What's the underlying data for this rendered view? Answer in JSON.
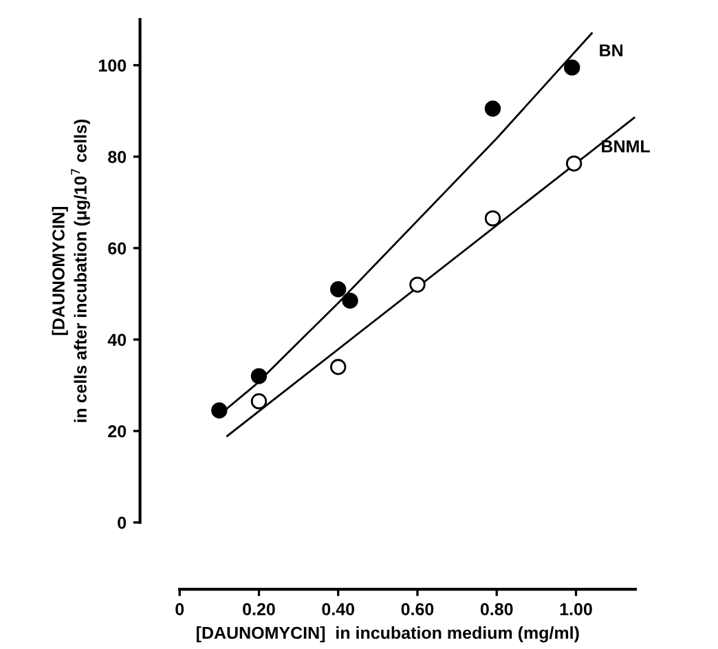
{
  "chart_data": {
    "type": "scatter",
    "xlabel": "[DAUNOMYCIN]  in incubation medium (mg/ml)",
    "ylabel": "[DAUNOMYCIN]\nin cells after incubation (μg/10$^{7}$ cells)",
    "xlim": [
      -0.1,
      1.15
    ],
    "ylim": [
      0,
      110
    ],
    "xticks": [
      0,
      {
        "value": 0.2,
        "label": "0.20"
      },
      {
        "value": 0.4,
        "label": "0.40"
      },
      {
        "value": 0.6,
        "label": "0.60"
      },
      {
        "value": 0.8,
        "label": "0.80"
      },
      {
        "value": 1.0,
        "label": "1.00"
      }
    ],
    "yticks": [
      0,
      20,
      40,
      60,
      80,
      100
    ],
    "grid": false,
    "legend": false,
    "series": [
      {
        "name": "BN",
        "color": "#000000",
        "marker": "circle",
        "x": [
          0.1,
          0.2,
          0.4,
          0.43,
          0.79,
          0.99
        ],
        "values": [
          24.5,
          32,
          51,
          48.5,
          90.5,
          99.5
        ]
      },
      {
        "name": "BNML",
        "color": "#ffffff",
        "marker": "circle",
        "x": [
          0.2,
          0.4,
          0.6,
          0.79,
          0.995
        ],
        "values": [
          26.5,
          34,
          52,
          66.5,
          78.5
        ]
      },
      {
        "type": "line",
        "color": "#000000",
        "x": [
          0.1,
          0.19,
          0.4,
          0.8,
          1.04
        ],
        "values": [
          23.5,
          30,
          48,
          84,
          107
        ]
      },
      {
        "type": "line",
        "color": "#000000",
        "x": [
          0.12,
          1.147
        ],
        "values": [
          18.9,
          88.5
        ]
      }
    ]
  }
}
